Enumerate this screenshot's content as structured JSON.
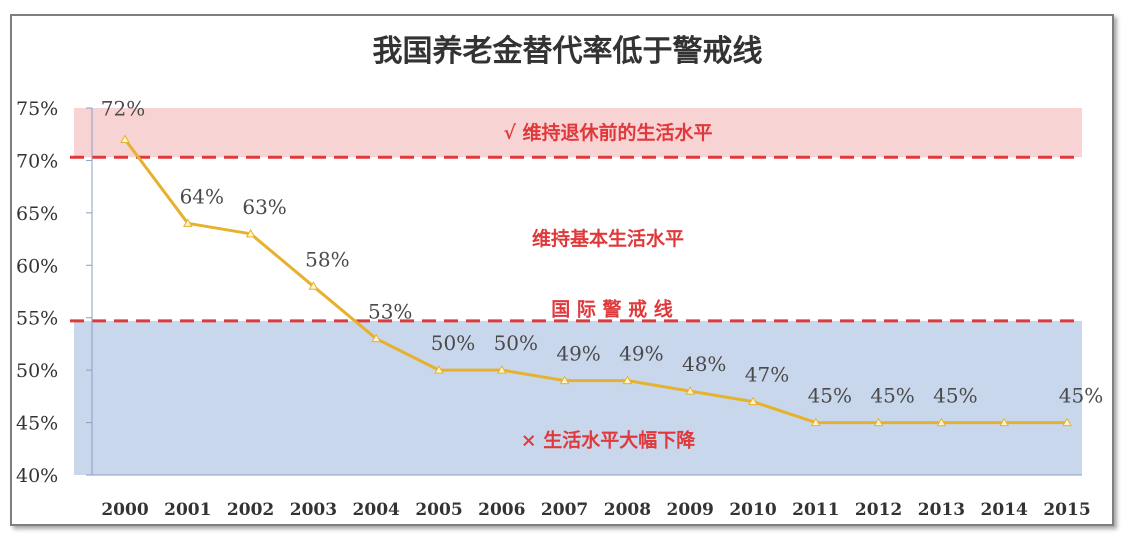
{
  "chart_data": {
    "type": "line",
    "title": "我国养老金替代率低于警戒线",
    "categories": [
      "2000",
      "2001",
      "2002",
      "2003",
      "2004",
      "2005",
      "2006",
      "2007",
      "2008",
      "2009",
      "2010",
      "2011",
      "2012",
      "2013",
      "2014",
      "2015"
    ],
    "series": [
      {
        "values": [
          72,
          64,
          63,
          58,
          53,
          50,
          50,
          49,
          49,
          48,
          47,
          45,
          45,
          45,
          45,
          45
        ],
        "value_labels": [
          "72%",
          "64%",
          "63%",
          "58%",
          "53%",
          "50%",
          "50%",
          "49%",
          "49%",
          "48%",
          "47%",
          "45%",
          "45%",
          "45%",
          "",
          "45%"
        ],
        "color": "#e6b22e"
      }
    ],
    "ylim": [
      40,
      75
    ],
    "yticks": [
      "40%",
      "45%",
      "50%",
      "55%",
      "60%",
      "65%",
      "70%",
      "75%"
    ],
    "bands": [
      {
        "from": 70.3,
        "to": 75,
        "color": "#f8d3d3"
      },
      {
        "from": 40,
        "to": 54.7,
        "color": "#c9d7ec"
      }
    ],
    "reference_lines": [
      {
        "value": 70.3,
        "color": "#e0393b"
      },
      {
        "value": 54.7,
        "color": "#e0393b"
      }
    ],
    "annotations": [
      {
        "key": "upper",
        "text": "√  维持退休前的生活水平",
        "y": 72.7
      },
      {
        "key": "middle",
        "text": "维持基本生活水平",
        "y": 62.6
      },
      {
        "key": "warning",
        "text": "国 际 警 戒 线",
        "y": 55.9
      },
      {
        "key": "lower",
        "text": "× 生活水平大幅下降",
        "y": 43.4
      }
    ],
    "xlabel": "",
    "ylabel": "",
    "grid": false,
    "legend": "none"
  }
}
